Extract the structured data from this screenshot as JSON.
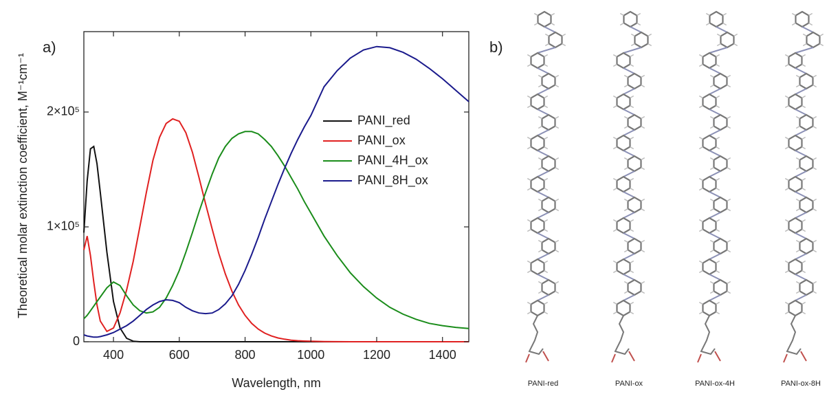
{
  "chart_data": {
    "type": "line",
    "panel_a": "a)",
    "panel_b": "b)",
    "x_label": "Wavelength, nm",
    "y_label": "Theoretical molar extinction coefficient, M⁻¹cm⁻¹",
    "xlim": [
      310,
      1480
    ],
    "ylim": [
      0,
      270000
    ],
    "xticks": [
      400,
      600,
      800,
      1000,
      1200,
      1400
    ],
    "yticks": [
      0,
      {
        "value": 100000,
        "label": "1×10⁵"
      },
      {
        "value": 200000,
        "label": "2×10⁵"
      }
    ],
    "legend": "upper right",
    "x": [
      310,
      320,
      330,
      340,
      350,
      360,
      380,
      400,
      420,
      440,
      460,
      480,
      500,
      520,
      540,
      560,
      580,
      600,
      620,
      640,
      660,
      680,
      700,
      720,
      740,
      760,
      780,
      800,
      820,
      840,
      860,
      880,
      900,
      920,
      940,
      960,
      980,
      1000,
      1040,
      1080,
      1120,
      1160,
      1200,
      1240,
      1280,
      1320,
      1360,
      1400,
      1440,
      1480
    ],
    "series": [
      {
        "name": "PANI_red",
        "color": "#111111",
        "values": [
          95000,
          140000,
          168000,
          170000,
          155000,
          130000,
          78000,
          35000,
          12000,
          3000,
          500,
          0,
          0,
          0,
          0,
          0,
          0,
          0,
          0,
          0,
          0,
          0,
          0,
          0,
          0,
          0,
          0,
          0,
          0,
          0,
          0,
          0,
          0,
          0,
          0,
          0,
          0,
          0,
          0,
          0,
          0,
          0,
          0,
          0,
          0,
          0,
          0,
          0,
          0,
          0
        ]
      },
      {
        "name": "PANI_ox",
        "color": "#e02020",
        "values": [
          80000,
          92000,
          75000,
          52000,
          32000,
          18000,
          9000,
          12000,
          25000,
          45000,
          70000,
          100000,
          130000,
          158000,
          178000,
          190000,
          194000,
          192000,
          182000,
          165000,
          143000,
          120000,
          98000,
          77000,
          59000,
          44000,
          32000,
          23000,
          16000,
          11000,
          7500,
          5000,
          3300,
          2200,
          1400,
          900,
          600,
          400,
          150,
          50,
          0,
          0,
          0,
          0,
          0,
          0,
          0,
          0,
          0,
          0
        ]
      },
      {
        "name": "PANI_4H_ox",
        "color": "#1a8c1a",
        "values": [
          20000,
          23000,
          27000,
          31000,
          35000,
          39000,
          47000,
          52000,
          49000,
          40000,
          32000,
          27000,
          25000,
          26000,
          30000,
          38000,
          49000,
          62000,
          78000,
          95000,
          113000,
          130000,
          146000,
          160000,
          170000,
          177000,
          181000,
          183000,
          183000,
          181000,
          176000,
          170000,
          162000,
          153000,
          143000,
          133000,
          122000,
          112000,
          92000,
          75000,
          60000,
          48000,
          38000,
          30000,
          24000,
          19500,
          16000,
          14000,
          12500,
          11500
        ]
      },
      {
        "name": "PANI_8H_ox",
        "color": "#1a1a8c",
        "values": [
          6000,
          5000,
          4500,
          4000,
          4000,
          4500,
          6000,
          8000,
          11000,
          14000,
          18000,
          23000,
          28000,
          32000,
          35000,
          36500,
          36000,
          34000,
          30000,
          27000,
          25000,
          24500,
          25000,
          28000,
          33000,
          40000,
          50000,
          62000,
          76000,
          91000,
          107000,
          122000,
          137000,
          151000,
          164000,
          176000,
          187000,
          197000,
          222000,
          236000,
          247000,
          254000,
          257000,
          256000,
          252000,
          246000,
          238000,
          229000,
          219000,
          209000
        ]
      }
    ]
  },
  "molecules": [
    "PANI-red",
    "PANI-ox",
    "PANI-ox-4H",
    "PANI-ox-8H"
  ]
}
